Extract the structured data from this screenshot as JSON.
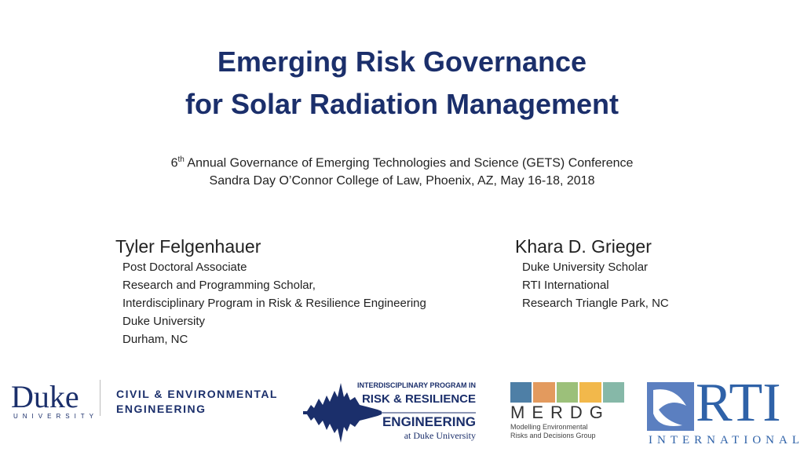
{
  "title": {
    "line1": "Emerging Risk Governance",
    "line2": "for Solar Radiation Management"
  },
  "subtitle": {
    "ordinal": "6",
    "sup": "th",
    "line1_rest": " Annual Governance of Emerging Technologies and Science (GETS) Conference",
    "line2": "Sandra Day O’Connor College of Law, Phoenix, AZ, May 16-18, 2018"
  },
  "authors": [
    {
      "name": "Tyler Felgenhauer",
      "lines": [
        "Post Doctoral Associate",
        "Research and Programming Scholar,",
        "Interdisciplinary Program in Risk & Resilience Engineering",
        "Duke University",
        "Durham, NC"
      ]
    },
    {
      "name": "Khara D. Grieger",
      "lines": [
        "Duke University Scholar",
        "RTI International",
        "Research Triangle Park, NC"
      ]
    }
  ],
  "logos": {
    "duke": {
      "word": "Duke",
      "sub": "UNIVERSITY"
    },
    "cee": {
      "line1": "CIVIL & ENVIRONMENTAL",
      "line2": "ENGINEERING"
    },
    "rre": {
      "line1": "INTERDISCIPLINARY PROGRAM IN",
      "line2": "RISK & RESILIENCE",
      "line3": "ENGINEERING",
      "line4": "at Duke University"
    },
    "merdg": {
      "acronym": "MERDG",
      "line1": "Modelling Environmental",
      "line2": "Risks and Decisions Group",
      "tile_colors": [
        "#4e7fa6",
        "#e39a5e",
        "#9cc07a",
        "#f2b84b",
        "#86b8a8"
      ]
    },
    "rti": {
      "word": "RTI",
      "sub": "INTERNATIONAL"
    }
  },
  "colors": {
    "navy": "#1b2f6b",
    "rti_blue": "#2f62a8"
  }
}
